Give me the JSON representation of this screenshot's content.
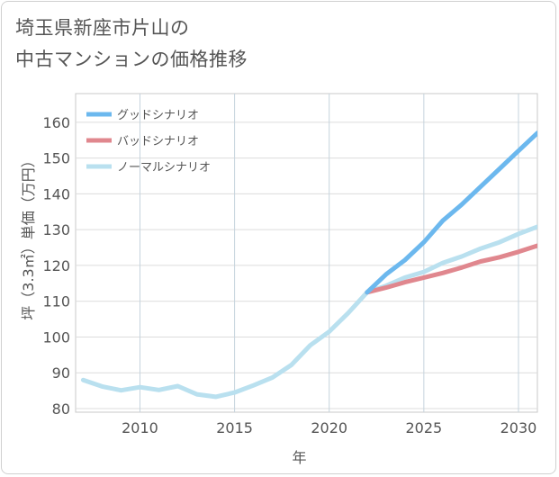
{
  "title_lines": [
    "埼玉県新座市片山の",
    "中古マンションの価格推移"
  ],
  "chart_data": {
    "type": "line",
    "title": "埼玉県新座市片山の中古マンションの価格推移",
    "xlabel": "年",
    "ylabel": "坪（3.3㎡）単価（万円）",
    "xlim": [
      2006.6,
      2031
    ],
    "ylim": [
      79,
      168
    ],
    "x_ticks": [
      2010,
      2015,
      2020,
      2025,
      2030
    ],
    "y_ticks": [
      80,
      90,
      100,
      110,
      120,
      130,
      140,
      150,
      160
    ],
    "grid": true,
    "legend_position": "top-left",
    "series": [
      {
        "name": "グッドシナリオ",
        "color": "#6cb8ee",
        "x": [
          2022,
          2023,
          2024,
          2025,
          2026,
          2027,
          2028,
          2029,
          2030,
          2031
        ],
        "y": [
          112.5,
          117.5,
          121.5,
          126.5,
          132.5,
          137,
          142,
          147,
          152,
          157
        ]
      },
      {
        "name": "バッドシナリオ",
        "color": "#e0878e",
        "x": [
          2022,
          2023,
          2024,
          2025,
          2026,
          2027,
          2028,
          2029,
          2030,
          2031
        ],
        "y": [
          112.5,
          113.8,
          115.3,
          116.6,
          117.9,
          119.4,
          121.1,
          122.3,
          123.8,
          125.5
        ]
      },
      {
        "name": "ノーマルシナリオ",
        "color": "#b9e0ef",
        "x": [
          2007,
          2008,
          2009,
          2010,
          2011,
          2012,
          2013,
          2014,
          2015,
          2016,
          2017,
          2018,
          2019,
          2020,
          2021,
          2022,
          2023,
          2024,
          2025,
          2026,
          2027,
          2028,
          2029,
          2030,
          2031
        ],
        "y": [
          88,
          86.2,
          85.1,
          86,
          85.2,
          86.3,
          84,
          83.3,
          84.5,
          86.5,
          88.7,
          92.2,
          97.7,
          101.5,
          106.7,
          112.5,
          114.3,
          116.6,
          118.2,
          120.7,
          122.5,
          124.7,
          126.5,
          128.8,
          130.8
        ]
      }
    ]
  }
}
